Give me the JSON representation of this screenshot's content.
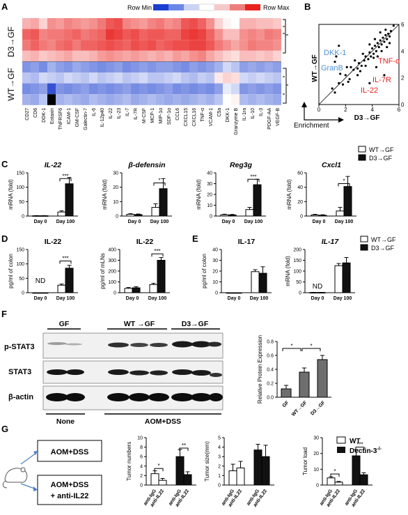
{
  "panels": {
    "A": {
      "letter": "A",
      "scale_min": "Row Min",
      "scale_max": "Row Max",
      "row_groups": [
        "D3→GF",
        "WT→GF"
      ],
      "genes": [
        "CD27",
        "CD6",
        "DDK-1",
        "Eotaxin",
        "TNFRSF6",
        "ICAM-1",
        "GM-CSF",
        "Galectin-7",
        "IL-6",
        "IL-12p40",
        "IL-22",
        "IL-23",
        "IL-7",
        "IL-7R",
        "M-CSF",
        "MCP-1",
        "MIP-1α",
        "SDF-1α",
        "CCL6",
        "CXCL15",
        "CXCL16",
        "TNF-α",
        "VCAM-1",
        "C5a",
        "DKK-1",
        "Granzyme B",
        "IL-1ra",
        "IL-10",
        "IL-3",
        "PDGF-AA",
        "VEGF-B"
      ]
    },
    "B": {
      "letter": "B",
      "ylabel": "WT→GF",
      "xlabel": "D3→GF",
      "enrichment": "Enrichment",
      "ticks": [
        "0",
        "2",
        "4",
        "6"
      ],
      "labels_blue": [
        "DKK-1",
        "GranB"
      ],
      "labels_red": [
        "TNF-α",
        "IL-7R",
        "IL-22"
      ]
    },
    "C": {
      "letter": "C",
      "legend": [
        "WT→GF",
        "D3→GF"
      ],
      "titles": [
        "IL-22",
        "β-defensin",
        "Reg3g",
        "Cxcl1"
      ],
      "ylabel": "mRNA (fold)",
      "xcats": [
        "Day 0",
        "Day 100"
      ],
      "sig": [
        "***",
        "*",
        "***",
        "*"
      ],
      "yticks": [
        [
          "0",
          "50",
          "100",
          "150"
        ],
        [
          "0",
          "10",
          "20",
          "30"
        ],
        [
          "0",
          "10",
          "20",
          "30",
          "40"
        ],
        [
          "0",
          "20",
          "40",
          "60"
        ]
      ]
    },
    "D": {
      "letter": "D",
      "titles": [
        "IL-22",
        "IL-22"
      ],
      "ylabels": [
        "pg/ml of colon",
        "pg/ml of mLNs"
      ],
      "nd": "ND",
      "sig": [
        "***",
        "***"
      ],
      "yticks": [
        [
          "0",
          "50",
          "100",
          "150"
        ],
        [
          "0",
          "100",
          "200",
          "300",
          "400"
        ]
      ]
    },
    "E": {
      "letter": "E",
      "titles": [
        "IL-17",
        "IL-17"
      ],
      "ylabels": [
        "pg/ml of colon",
        "mRNA (fold)"
      ],
      "nd": "ND",
      "legend": [
        "WT→GF",
        "D3→GF"
      ],
      "yticks": [
        [
          "0",
          "10",
          "20",
          "30",
          "40"
        ],
        [
          "0",
          "50",
          "100",
          "150",
          "200"
        ]
      ]
    },
    "F": {
      "letter": "F",
      "groups": [
        "GF",
        "WT →GF",
        "D3→GF"
      ],
      "rows": [
        "p-STAT3",
        "STAT3",
        "β-actin"
      ],
      "bottom": [
        "None",
        "AOM+DSS"
      ],
      "bar_ylabel": "Relative Protein Expression",
      "bar_xcats": [
        "GF",
        "WT→GF",
        "D3→GF"
      ],
      "yticks": [
        "0.0",
        "0.2",
        "0.4",
        "0.6",
        "0.8"
      ],
      "sig": [
        "*",
        "*"
      ]
    },
    "G": {
      "letter": "G",
      "box1": "AOM+DSS",
      "box2_line1": "AOM+DSS",
      "box2_line2": "+ anti-IL22",
      "legend": [
        "WT",
        "Dectin-3"
      ],
      "legend_sup": "-/-",
      "ylabels": [
        "Tumor numbers",
        "Tumor size(mm)",
        "Tumor load"
      ],
      "xcats": [
        "anti-IgG",
        "anti-IL22",
        "anti-IgG",
        "anti-IL22"
      ],
      "sig": [
        [
          "*",
          "**"
        ],
        [],
        [
          "*",
          "***"
        ]
      ],
      "yticks": [
        [
          "0",
          "2",
          "4",
          "6",
          "8",
          "10"
        ],
        [
          "0",
          "1",
          "2",
          "3",
          "4",
          "5"
        ],
        [
          "0",
          "10",
          "20",
          "30"
        ]
      ]
    }
  },
  "chart_data": [
    {
      "type": "heatmap",
      "rows": 8,
      "note_rows": "4 D3→GF, 4 WT→GF",
      "scale": [
        "Row Min",
        "Row Max"
      ]
    },
    {
      "type": "scatter",
      "xlabel": "D3→GF",
      "ylabel": "WT→GF",
      "xlim": [
        0,
        6
      ],
      "ylim": [
        0,
        6
      ]
    },
    {
      "type": "bar",
      "title": "IL-22",
      "ylabel": "mRNA (fold)",
      "categories": [
        "Day 0",
        "Day 100"
      ],
      "ylim": [
        0,
        150
      ],
      "series": [
        {
          "name": "WT→GF",
          "values": [
            1,
            14
          ],
          "err": [
            0.5,
            4
          ]
        },
        {
          "name": "D3→GF",
          "values": [
            1,
            112
          ],
          "err": [
            0.5,
            22
          ]
        }
      ]
    },
    {
      "type": "bar",
      "title": "β-defensin",
      "ylabel": "mRNA (fold)",
      "categories": [
        "Day 0",
        "Day 100"
      ],
      "ylim": [
        0,
        30
      ],
      "series": [
        {
          "name": "WT→GF",
          "values": [
            1.2,
            6
          ],
          "err": [
            0.4,
            2.5
          ]
        },
        {
          "name": "D3→GF",
          "values": [
            1,
            19
          ],
          "err": [
            0.4,
            7
          ]
        }
      ]
    },
    {
      "type": "bar",
      "title": "Reg3g",
      "ylabel": "mRNA (fold)",
      "categories": [
        "Day 0",
        "Day 100"
      ],
      "ylim": [
        0,
        40
      ],
      "series": [
        {
          "name": "WT→GF",
          "values": [
            1.2,
            6
          ],
          "err": [
            0.5,
            2
          ]
        },
        {
          "name": "D3→GF",
          "values": [
            1,
            29
          ],
          "err": [
            0.5,
            5
          ]
        }
      ]
    },
    {
      "type": "bar",
      "title": "Cxcl1",
      "ylabel": "mRNA (fold)",
      "categories": [
        "Day 0",
        "Day 100"
      ],
      "ylim": [
        0,
        60
      ],
      "series": [
        {
          "name": "WT→GF",
          "values": [
            1.5,
            7
          ],
          "err": [
            0.8,
            5
          ]
        },
        {
          "name": "D3→GF",
          "values": [
            1,
            41
          ],
          "err": [
            0.8,
            14
          ]
        }
      ]
    },
    {
      "type": "bar",
      "title": "IL-22",
      "ylabel": "pg/ml of colon",
      "categories": [
        "Day 0",
        "Day 100"
      ],
      "ylim": [
        0,
        150
      ],
      "series": [
        {
          "name": "WT→GF",
          "values": [
            0,
            26
          ],
          "err": [
            0,
            4
          ]
        },
        {
          "name": "D3→GF",
          "values": [
            0,
            85
          ],
          "err": [
            0,
            10
          ]
        }
      ]
    },
    {
      "type": "bar",
      "title": "IL-22",
      "ylabel": "pg/ml of mLNs",
      "categories": [
        "Day 0",
        "Day 100"
      ],
      "ylim": [
        0,
        400
      ],
      "series": [
        {
          "name": "WT→GF",
          "values": [
            40,
            75
          ],
          "err": [
            8,
            12
          ]
        },
        {
          "name": "D3→GF",
          "values": [
            45,
            300
          ],
          "err": [
            10,
            25
          ]
        }
      ]
    },
    {
      "type": "bar",
      "title": "IL-17",
      "ylabel": "pg/ml of colon",
      "categories": [
        "Day 0",
        "Day 100"
      ],
      "ylim": [
        0,
        40
      ],
      "series": [
        {
          "name": "WT→GF",
          "values": [
            0,
            19.5
          ],
          "err": [
            0,
            1.8
          ]
        },
        {
          "name": "D3→GF",
          "values": [
            0,
            18
          ],
          "err": [
            0,
            6
          ]
        }
      ]
    },
    {
      "type": "bar",
      "title": "IL-17",
      "ylabel": "mRNA (fold)",
      "categories": [
        "Day 0",
        "Day 100"
      ],
      "ylim": [
        0,
        200
      ],
      "series": [
        {
          "name": "WT→GF",
          "values": [
            1,
            125
          ],
          "err": [
            0.5,
            10
          ]
        },
        {
          "name": "D3→GF",
          "values": [
            1,
            138
          ],
          "err": [
            0.5,
            25
          ]
        }
      ]
    },
    {
      "type": "bar",
      "ylabel": "Relative Protein Expression",
      "categories": [
        "GF",
        "WT→GF",
        "D3→GF"
      ],
      "ylim": [
        0,
        0.8
      ],
      "series": [
        {
          "values": [
            0.12,
            0.36,
            0.54
          ],
          "err": [
            0.05,
            0.06,
            0.06
          ]
        }
      ]
    },
    {
      "type": "bar",
      "ylabel": "Tumor numbers",
      "categories": [
        "anti-IgG",
        "anti-IL22"
      ],
      "ylim": [
        0,
        10
      ],
      "series": [
        {
          "name": "WT",
          "values": [
            2.4,
            1.0
          ],
          "err": [
            0.6,
            0.4
          ]
        },
        {
          "name": "Dectin-3-/-",
          "values": [
            6.0,
            2.2
          ],
          "err": [
            1.5,
            0.6
          ]
        }
      ]
    },
    {
      "type": "bar",
      "ylabel": "Tumor size(mm)",
      "categories": [
        "anti-IgG",
        "anti-IL22"
      ],
      "ylim": [
        0,
        5
      ],
      "series": [
        {
          "name": "WT",
          "values": [
            1.5,
            1.8
          ],
          "err": [
            0.7,
            0.7
          ]
        },
        {
          "name": "Dectin-3-/-",
          "values": [
            3.7,
            3.0
          ],
          "err": [
            0.6,
            1.2
          ]
        }
      ]
    },
    {
      "type": "bar",
      "ylabel": "Tumor load",
      "categories": [
        "anti-IgG",
        "anti-IL22"
      ],
      "ylim": [
        0,
        30
      ],
      "series": [
        {
          "name": "WT",
          "values": [
            4.5,
            1.8
          ],
          "err": [
            0.8,
            0.5
          ]
        },
        {
          "name": "Dectin-3-/-",
          "values": [
            18.5,
            6.5
          ],
          "err": [
            4,
            1.3
          ]
        }
      ]
    }
  ],
  "colors": {
    "red": "#e8221f",
    "blue": "#2e57d6",
    "label_blue": "#4f8fd4",
    "bar_black": "#111111"
  }
}
